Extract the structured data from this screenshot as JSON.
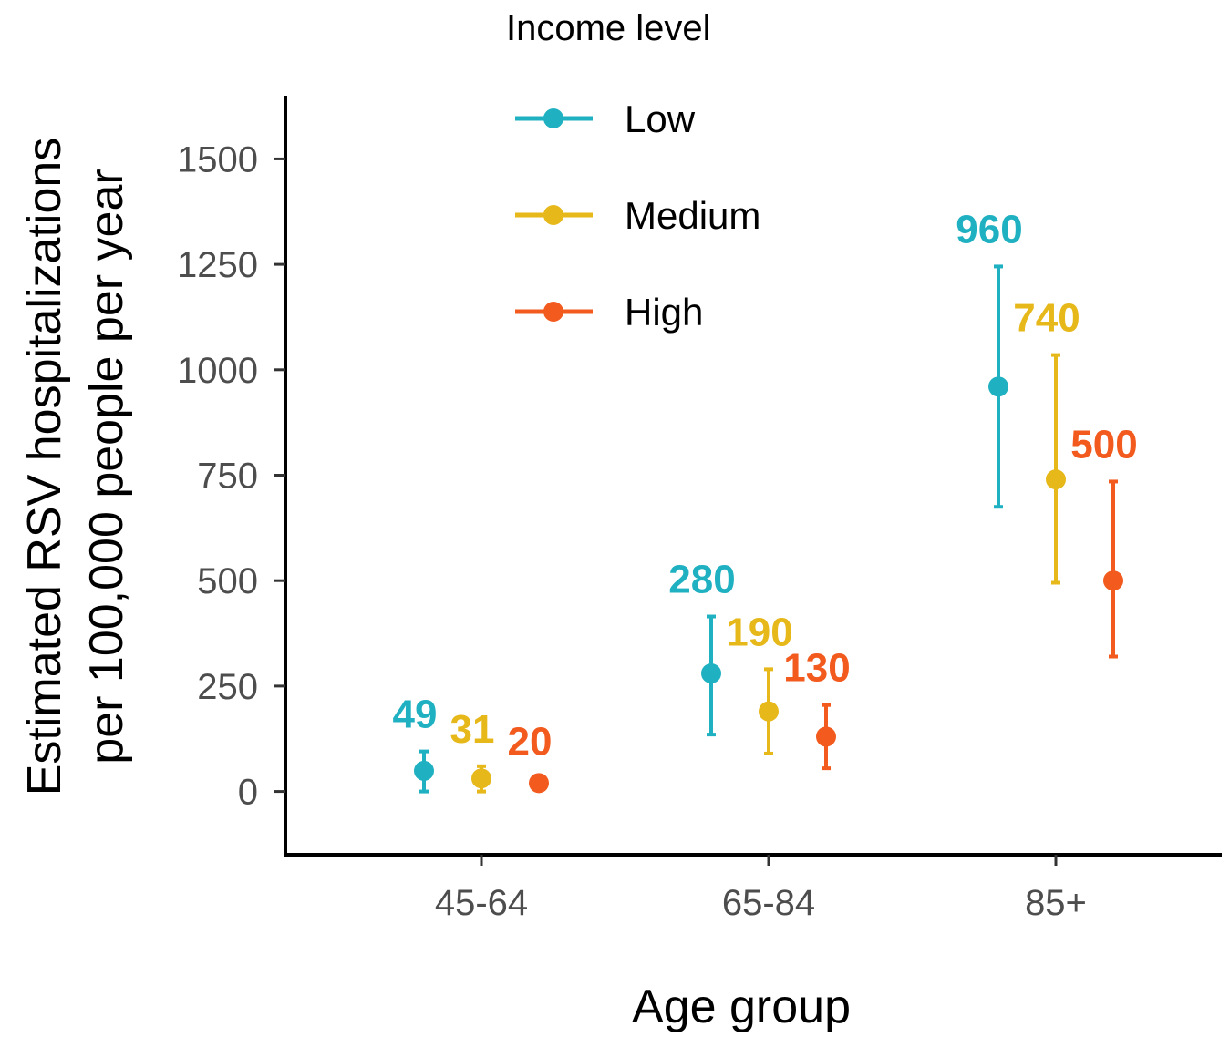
{
  "chart_data": {
    "type": "scatter",
    "xlabel": "Age group",
    "ylabel_lines": [
      "Estimated RSV hospitalizations",
      "per 100,000 people per year"
    ],
    "categories": [
      "45-64",
      "65-84",
      "85+"
    ],
    "ylim": [
      -150,
      1650
    ],
    "yticks": [
      0,
      250,
      500,
      750,
      1000,
      1250,
      1500
    ],
    "ytick_labels": [
      "0",
      "250",
      "500",
      "750",
      "1000",
      "1250",
      "1500"
    ],
    "grid": false,
    "legend": {
      "title": "Income level",
      "placement": "top-center",
      "entries": [
        "Low",
        "Medium",
        "High"
      ]
    },
    "series": [
      {
        "name": "Low",
        "color": "#1fb1c1",
        "values": [
          49,
          280,
          960
        ],
        "lower": [
          0,
          135,
          675
        ],
        "upper": [
          95,
          415,
          1245
        ],
        "labels": [
          "49",
          "280",
          "960"
        ]
      },
      {
        "name": "Medium",
        "color": "#e6b81a",
        "values": [
          31,
          190,
          740
        ],
        "lower": [
          0,
          90,
          495
        ],
        "upper": [
          60,
          290,
          1035
        ],
        "labels": [
          "31",
          "190",
          "740"
        ]
      },
      {
        "name": "High",
        "color": "#f25a1e",
        "values": [
          20,
          130,
          500
        ],
        "lower": [
          10,
          55,
          320
        ],
        "upper": [
          30,
          205,
          735
        ],
        "labels": [
          "20",
          "130",
          "500"
        ]
      }
    ]
  }
}
